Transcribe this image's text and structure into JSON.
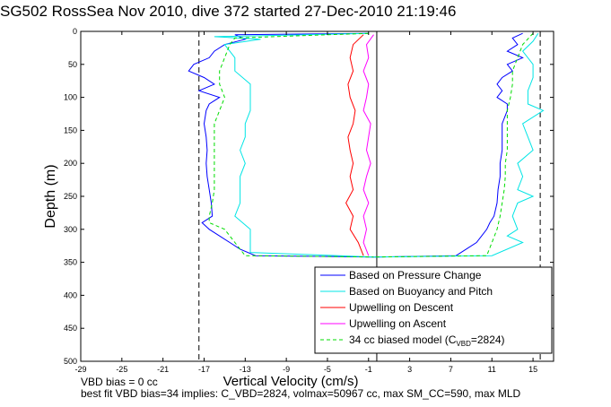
{
  "chart_data": {
    "type": "line",
    "title": "SG502 RossSea Nov 2010, dive 372 started 27-Dec-2010 21:19:46",
    "xlabel": "Vertical Velocity (cm/s)",
    "ylabel": "Depth (m)",
    "xlim": [
      -29,
      17
    ],
    "ylim": [
      500,
      0
    ],
    "y_reversed": true,
    "xticks": [
      -29,
      -25,
      -21,
      -17,
      -13,
      -9,
      -5,
      -1,
      3,
      7,
      11,
      15
    ],
    "yticks": [
      0,
      50,
      100,
      150,
      200,
      250,
      300,
      350,
      400,
      450,
      500
    ],
    "grid": false,
    "legend_placement": "bottom-right",
    "reference_lines": {
      "dashed_x": [
        -17.5,
        15.7
      ],
      "solid_x": [
        -0.2
      ]
    },
    "series": [
      {
        "name": "Based on Pressure Change",
        "color": "#0000ff",
        "style": "solid",
        "segments": [
          {
            "depth": [
              3,
              5,
              12,
              20,
              30,
              40,
              50,
              60,
              70,
              80,
              90,
              100,
              110,
              120,
              140,
              160,
              180,
              200,
              220,
              240,
              260,
              280,
              290,
              300,
              310,
              320,
              330,
              340,
              342
            ],
            "velocity": [
              -1,
              -14,
              -13,
              -15,
              -16,
              -16.5,
              -18,
              -18.5,
              -17,
              -16,
              -17.5,
              -15.5,
              -16.5,
              -16.8,
              -17,
              -16.8,
              -16.7,
              -16.8,
              -16.7,
              -16.5,
              -16.3,
              -16.2,
              -17.2,
              -16.5,
              -15.5,
              -14.5,
              -13.5,
              -12,
              -0.5
            ]
          },
          {
            "depth": [
              3,
              10,
              20,
              30,
              40,
              50,
              60,
              70,
              80,
              90,
              100,
              110,
              120,
              140,
              160,
              180,
              200,
              220,
              240,
              260,
              280,
              290,
              300,
              310,
              320,
              330,
              340,
              342
            ],
            "velocity": [
              14,
              13,
              13.5,
              12.5,
              14,
              12.5,
              13,
              12,
              11.5,
              12,
              11.5,
              12.5,
              12.5,
              12,
              12,
              12,
              11.8,
              11.8,
              11.6,
              11.5,
              11.2,
              10.8,
              10.5,
              10,
              9.5,
              8.5,
              7.5,
              -0.5
            ]
          }
        ]
      },
      {
        "name": "Based on Buoyancy and Pitch",
        "color": "#00e5e5",
        "style": "solid",
        "segments": [
          {
            "depth": [
              3,
              8,
              12,
              20,
              40,
              60,
              80,
              100,
              120,
              140,
              160,
              180,
              200,
              220,
              240,
              260,
              280,
              300,
              320,
              335,
              342
            ],
            "velocity": [
              -1,
              -16,
              -11.5,
              -15,
              -14,
              -14,
              -12.5,
              -12.5,
              -12.5,
              -13,
              -13,
              -13.5,
              -13,
              -13.5,
              -13.5,
              -13.5,
              -14,
              -12.5,
              -12.5,
              -12.5,
              -0.5
            ]
          },
          {
            "depth": [
              3,
              15,
              30,
              50,
              70,
              90,
              110,
              120,
              140,
              160,
              180,
              200,
              220,
              240,
              250,
              260,
              280,
              300,
              310,
              320,
              340,
              342
            ],
            "velocity": [
              15.5,
              15,
              14,
              15,
              15,
              14.5,
              14.5,
              16,
              14,
              14.5,
              15,
              13.5,
              14,
              13.5,
              15,
              13.5,
              13,
              13.5,
              12.5,
              14,
              11,
              -0.5
            ]
          }
        ]
      },
      {
        "name": "Upwelling on Descent",
        "color": "#ff0000",
        "style": "solid",
        "segments": [
          {
            "depth": [
              5,
              20,
              40,
              60,
              80,
              100,
              120,
              140,
              160,
              180,
              200,
              220,
              240,
              260,
              280,
              300,
              320,
              340
            ],
            "velocity": [
              -1.5,
              -2.5,
              -2.8,
              -2.5,
              -3,
              -2.8,
              -2.3,
              -2.5,
              -3,
              -2.8,
              -2.5,
              -2.8,
              -2.5,
              -3.2,
              -2.5,
              -2.8,
              -2,
              -1.5
            ]
          }
        ]
      },
      {
        "name": "Upwelling on Ascent",
        "color": "#ff00ff",
        "style": "solid",
        "segments": [
          {
            "depth": [
              5,
              20,
              40,
              60,
              80,
              100,
              120,
              140,
              160,
              180,
              200,
              220,
              240,
              260,
              280,
              300,
              320,
              340
            ],
            "velocity": [
              -0.5,
              -1.2,
              -1,
              -1.5,
              -1,
              -1.2,
              -1.5,
              -0.8,
              -1,
              -1.2,
              -0.8,
              -1.2,
              -1.5,
              -1,
              -1.5,
              -1.2,
              -1.5,
              -1
            ]
          }
        ]
      },
      {
        "name": "34 cc biased model (C",
        "name_subscript": "VBD",
        "name_suffix": "=2824)",
        "color": "#00dd00",
        "style": "dashed",
        "segments": [
          {
            "depth": [
              3,
              10,
              20,
              40,
              60,
              80,
              100,
              120,
              140,
              160,
              180,
              200,
              220,
              240,
              260,
              280,
              290,
              300,
              320,
              340,
              342
            ],
            "velocity": [
              -1,
              -14,
              -14.5,
              -15,
              -15.5,
              -15.5,
              -15,
              -15.5,
              -16,
              -16,
              -16,
              -16,
              -16,
              -16,
              -16.2,
              -16.5,
              -16.5,
              -15,
              -14,
              -13,
              -0.5
            ]
          },
          {
            "depth": [
              3,
              20,
              40,
              60,
              80,
              100,
              120,
              140,
              160,
              180,
              200,
              220,
              240,
              260,
              280,
              300,
              320,
              340,
              342
            ],
            "velocity": [
              15,
              14,
              13.5,
              13,
              13,
              12.8,
              12.5,
              12.5,
              12.5,
              12.5,
              12.3,
              12.3,
              12.2,
              12,
              11.8,
              11.5,
              11,
              10.5,
              -0.5
            ]
          }
        ]
      }
    ]
  },
  "notes": {
    "line1": "VBD bias = 0 cc",
    "line2": "best fit VBD bias=34 implies: C_VBD=2824, volmax=50967 cc, max SM_CC=590, max MLD"
  }
}
